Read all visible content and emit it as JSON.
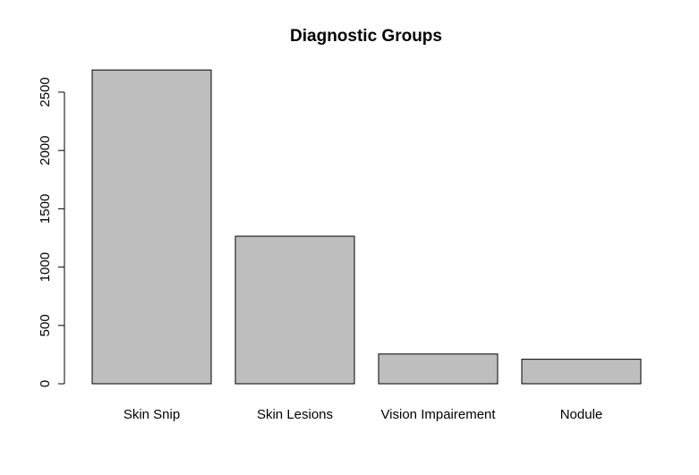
{
  "chart_data": {
    "type": "bar",
    "title": "Diagnostic Groups",
    "xlabel": "",
    "ylabel": "",
    "categories": [
      "Skin Snip",
      "Skin Lesions",
      "Vision Impairement",
      "Nodule"
    ],
    "values": [
      2690,
      1265,
      255,
      210
    ],
    "yticks": [
      0,
      500,
      1000,
      1500,
      2000,
      2500
    ],
    "ylim": [
      0,
      2690
    ],
    "grid": false,
    "legend": "none",
    "bar_fill": "#bebebe",
    "bar_stroke": "#000000"
  }
}
